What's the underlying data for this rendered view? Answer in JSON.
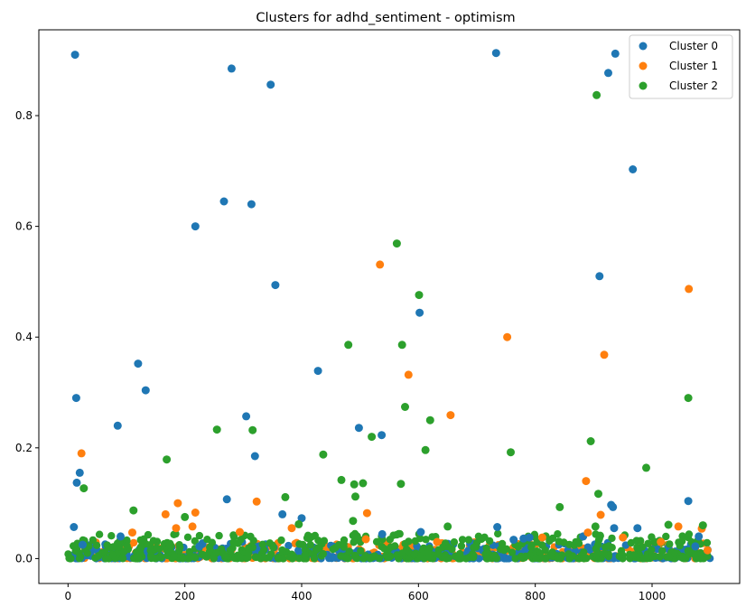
{
  "chart_data": {
    "type": "scatter",
    "title": "Clusters for adhd_sentiment - optimism",
    "xlabel": "",
    "ylabel": "",
    "xlim": [
      -50,
      1150
    ],
    "ylim": [
      -0.045,
      0.955
    ],
    "xticks": [
      0,
      200,
      400,
      600,
      800,
      1000
    ],
    "yticks": [
      0.0,
      0.2,
      0.4,
      0.6,
      0.8
    ],
    "legend": "top-right",
    "grid": false,
    "series": [
      {
        "name": "Cluster 0",
        "color": "#1f77b4",
        "points": [
          [
            12,
            0.91
          ],
          [
            10,
            0.057
          ],
          [
            14,
            0.29
          ],
          [
            15,
            0.137
          ],
          [
            20,
            0.155
          ],
          [
            25,
            0.025
          ],
          [
            85,
            0.24
          ],
          [
            90,
            0.04
          ],
          [
            120,
            0.352
          ],
          [
            133,
            0.304
          ],
          [
            218,
            0.6
          ],
          [
            225,
            0.022
          ],
          [
            267,
            0.645
          ],
          [
            272,
            0.107
          ],
          [
            280,
            0.885
          ],
          [
            305,
            0.257
          ],
          [
            314,
            0.64
          ],
          [
            320,
            0.185
          ],
          [
            347,
            0.856
          ],
          [
            355,
            0.494
          ],
          [
            367,
            0.08
          ],
          [
            400,
            0.073
          ],
          [
            428,
            0.339
          ],
          [
            498,
            0.236
          ],
          [
            537,
            0.223
          ],
          [
            538,
            0.044
          ],
          [
            602,
            0.444
          ],
          [
            604,
            0.048
          ],
          [
            733,
            0.913
          ],
          [
            735,
            0.057
          ],
          [
            763,
            0.034
          ],
          [
            780,
            0.036
          ],
          [
            790,
            0.038
          ],
          [
            882,
            0.04
          ],
          [
            910,
            0.51
          ],
          [
            925,
            0.877
          ],
          [
            930,
            0.097
          ],
          [
            933,
            0.093
          ],
          [
            935,
            0.055
          ],
          [
            937,
            0.912
          ],
          [
            967,
            0.703
          ],
          [
            975,
            0.055
          ],
          [
            1062,
            0.104
          ],
          [
            1074,
            0.022
          ],
          [
            1080,
            0.04
          ]
        ]
      },
      {
        "name": "Cluster 1",
        "color": "#ff7f0e",
        "points": [
          [
            23,
            0.19
          ],
          [
            110,
            0.047
          ],
          [
            167,
            0.08
          ],
          [
            188,
            0.1
          ],
          [
            185,
            0.055
          ],
          [
            213,
            0.058
          ],
          [
            218,
            0.083
          ],
          [
            294,
            0.048
          ],
          [
            323,
            0.103
          ],
          [
            383,
            0.055
          ],
          [
            510,
            0.035
          ],
          [
            512,
            0.082
          ],
          [
            534,
            0.531
          ],
          [
            583,
            0.332
          ],
          [
            655,
            0.259
          ],
          [
            632,
            0.03
          ],
          [
            752,
            0.4
          ],
          [
            812,
            0.038
          ],
          [
            887,
            0.14
          ],
          [
            890,
            0.047
          ],
          [
            912,
            0.079
          ],
          [
            918,
            0.368
          ],
          [
            950,
            0.038
          ],
          [
            1015,
            0.03
          ],
          [
            1045,
            0.058
          ],
          [
            1063,
            0.487
          ],
          [
            1085,
            0.054
          ],
          [
            1095,
            0.015
          ]
        ]
      },
      {
        "name": "Cluster 2",
        "color": "#2ca02c",
        "points": [
          [
            27,
            0.127
          ],
          [
            112,
            0.087
          ],
          [
            169,
            0.179
          ],
          [
            200,
            0.075
          ],
          [
            255,
            0.233
          ],
          [
            316,
            0.232
          ],
          [
            372,
            0.111
          ],
          [
            395,
            0.062
          ],
          [
            437,
            0.188
          ],
          [
            468,
            0.142
          ],
          [
            480,
            0.386
          ],
          [
            488,
            0.068
          ],
          [
            490,
            0.134
          ],
          [
            492,
            0.112
          ],
          [
            505,
            0.136
          ],
          [
            520,
            0.22
          ],
          [
            563,
            0.569
          ],
          [
            570,
            0.135
          ],
          [
            572,
            0.386
          ],
          [
            577,
            0.274
          ],
          [
            601,
            0.476
          ],
          [
            612,
            0.196
          ],
          [
            620,
            0.25
          ],
          [
            650,
            0.058
          ],
          [
            758,
            0.192
          ],
          [
            842,
            0.093
          ],
          [
            895,
            0.212
          ],
          [
            905,
            0.837
          ],
          [
            908,
            0.117
          ],
          [
            903,
            0.058
          ],
          [
            990,
            0.164
          ],
          [
            1028,
            0.061
          ],
          [
            1062,
            0.29
          ],
          [
            1087,
            0.06
          ]
        ]
      }
    ],
    "dense_band": {
      "note_colors": [
        "#1f77b4",
        "#ff7f0e",
        "#2ca02c"
      ]
    }
  }
}
